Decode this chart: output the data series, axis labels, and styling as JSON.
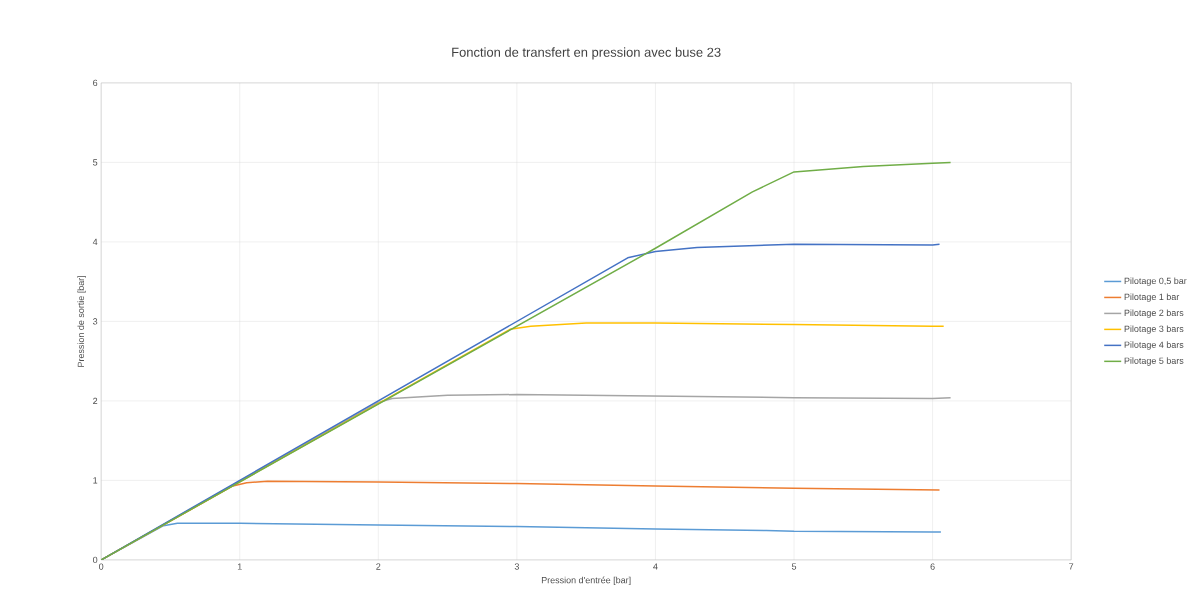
{
  "chart_data": {
    "type": "line",
    "title": "Fonction de transfert en pression avec buse 23",
    "xlabel": "Pression d'entrée [bar]",
    "ylabel": "Pression de sortie [bar]",
    "xlim": [
      0,
      7
    ],
    "ylim": [
      0,
      6
    ],
    "xticks": [
      0,
      1,
      2,
      3,
      4,
      5,
      6,
      7
    ],
    "yticks": [
      0,
      1,
      2,
      3,
      4,
      5,
      6
    ],
    "grid": true,
    "legend": "right",
    "series": [
      {
        "name": "Pilotage 0,5 bar",
        "color": "#5b9bd5",
        "x": [
          0,
          0.45,
          0.55,
          1,
          2,
          3,
          4,
          4.8,
          5,
          6,
          6.06
        ],
        "values": [
          0,
          0.43,
          0.46,
          0.46,
          0.44,
          0.42,
          0.39,
          0.37,
          0.36,
          0.35,
          0.35
        ]
      },
      {
        "name": "Pilotage 1 bar",
        "color": "#ed7d31",
        "x": [
          0,
          0.95,
          1.05,
          1.2,
          2,
          3,
          4,
          5,
          6.05
        ],
        "values": [
          0,
          0.93,
          0.97,
          0.99,
          0.98,
          0.96,
          0.93,
          0.9,
          0.88
        ]
      },
      {
        "name": "Pilotage 2 bars",
        "color": "#a5a5a5",
        "x": [
          0,
          2,
          2.1,
          2.5,
          3,
          4,
          5,
          6,
          6.13
        ],
        "values": [
          0,
          1.98,
          2.03,
          2.07,
          2.08,
          2.06,
          2.04,
          2.03,
          2.04
        ]
      },
      {
        "name": "Pilotage 3 bars",
        "color": "#ffc000",
        "x": [
          0,
          2.95,
          3.1,
          3.5,
          4,
          5,
          6,
          6.08
        ],
        "values": [
          0,
          2.9,
          2.94,
          2.98,
          2.98,
          2.96,
          2.94,
          2.94
        ]
      },
      {
        "name": "Pilotage 4 bars",
        "color": "#4472c4",
        "x": [
          0,
          3.8,
          4,
          4.3,
          5,
          6,
          6.05
        ],
        "values": [
          0,
          3.8,
          3.88,
          3.93,
          3.97,
          3.96,
          3.97
        ]
      },
      {
        "name": "Pilotage 5 bars",
        "color": "#70ad47",
        "x": [
          0,
          4,
          4.7,
          5,
          5.5,
          6,
          6.13
        ],
        "values": [
          0,
          3.92,
          4.63,
          4.88,
          4.95,
          4.99,
          5.0
        ]
      }
    ]
  }
}
